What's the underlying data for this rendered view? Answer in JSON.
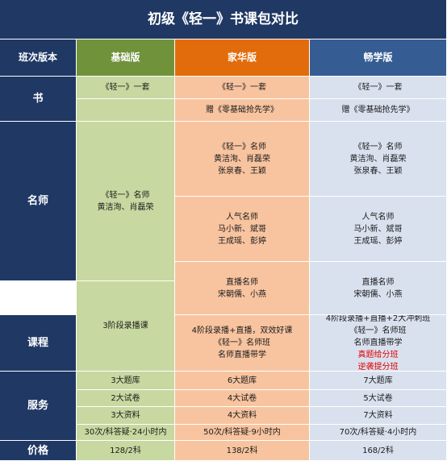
{
  "title": "初级《轻一》书课包对比",
  "headers": {
    "label": "班次版本",
    "basic": "基础版",
    "home": "家华版",
    "smooth": "畅学版"
  },
  "rows": {
    "book": "书",
    "teacher": "名师",
    "course": "课程",
    "service": "服务",
    "price": "价格"
  },
  "book": {
    "basic_1": "《轻一》一套",
    "home_1": "《轻一》一套",
    "smooth_1": "《轻一》一套",
    "home_2": "赠《零基础抢先学》",
    "smooth_2": "赠《零基础抢先学》"
  },
  "teacher": {
    "basic": [
      "《轻一》名师",
      "黄洁洵、肖磊荣"
    ],
    "home_1": [
      "《轻一》名师",
      "黄洁洵、肖磊荣",
      "张泉春、王颖"
    ],
    "smooth_1": [
      "《轻一》名师",
      "黄洁洵、肖磊荣",
      "张泉春、王颖"
    ],
    "home_2": [
      "人气名师",
      "马小新、斌哥",
      "王成瑶、彭婷"
    ],
    "smooth_2": [
      "人气名师",
      "马小新、斌哥",
      "王成瑶、彭婷"
    ],
    "home_3": [
      "直播名师",
      "宋朝儒、小燕"
    ],
    "smooth_3": [
      "直播名师",
      "宋朝儒、小燕"
    ]
  },
  "course": {
    "basic": "3阶段录播课",
    "home": [
      "4阶段录播+直播，双效好课",
      "《轻一》名师班",
      "名师直播带学"
    ],
    "smooth": [
      "4阶段录播+直播+2大冲刺班",
      "《轻一》名师班",
      "名师直播带学"
    ],
    "smooth_red": [
      "真题给分班",
      "逆袭提分班"
    ]
  },
  "service": {
    "basic": [
      "3大题库",
      "2大试卷",
      "3大资料",
      "30次/科答疑·24小时内"
    ],
    "home": [
      "6大题库",
      "4大试卷",
      "4大资料",
      "50次/科答疑·9小时内"
    ],
    "smooth": [
      "7大题库",
      "5大试卷",
      "7大资料",
      "70次/科答疑·4小时内"
    ]
  },
  "price": {
    "basic": "128/2科",
    "home": "138/2科",
    "smooth": "168/2科"
  },
  "colors": {
    "navy": "#1f3864",
    "green_header": "#70923b",
    "orange_header": "#e26c0b",
    "blue_header": "#355d94",
    "green_cell": "#c7d9a0",
    "orange_cell": "#f8c4a0",
    "blue_cell": "#d9e1ef",
    "highlight_red": "#e00000"
  }
}
